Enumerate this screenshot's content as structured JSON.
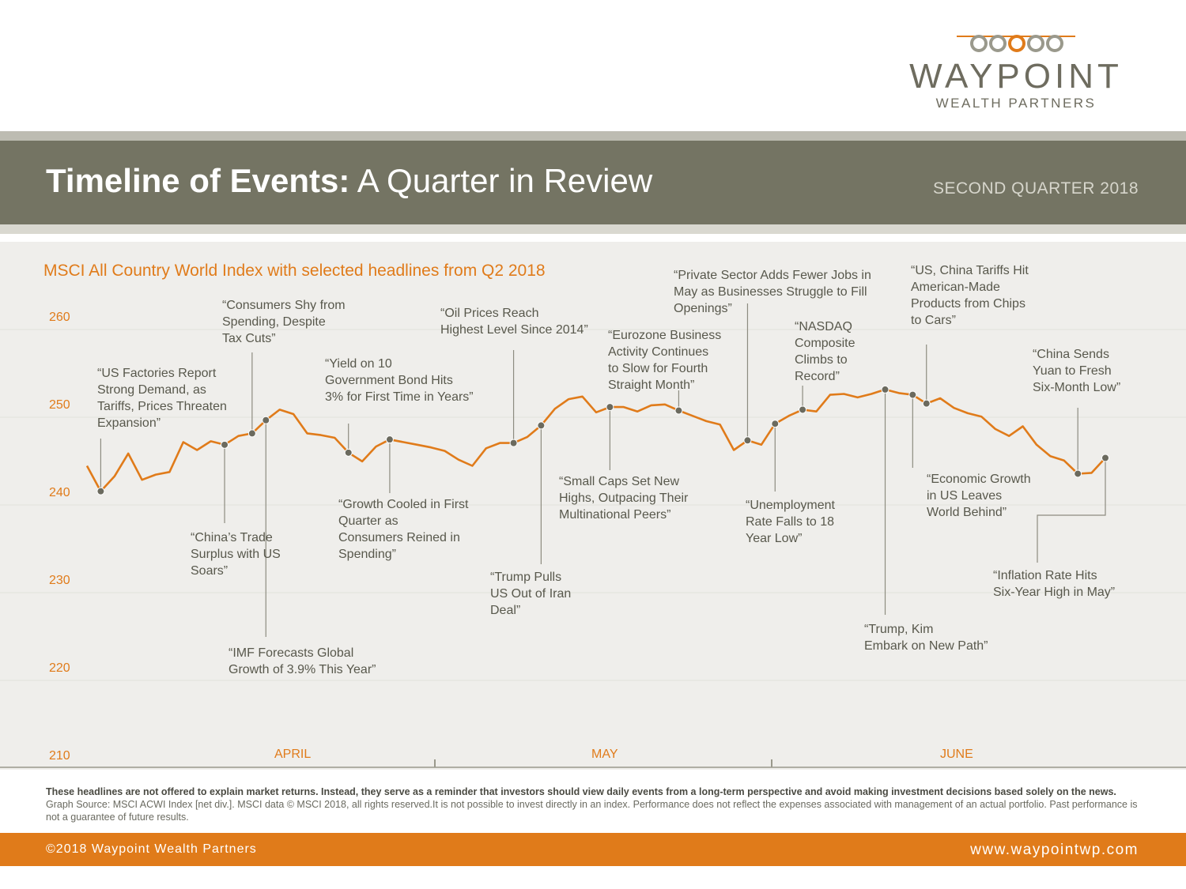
{
  "brand": {
    "name": "WAYPOINT",
    "tagline": "WEALTH PARTNERS",
    "colors": {
      "accent": "#e07b1a",
      "olive": "#747463",
      "text": "#58584c",
      "line": "#e07b1a",
      "panel": "#efeeeb"
    }
  },
  "header": {
    "title_bold": "Timeline of Events:",
    "title_light": "A Quarter in Review",
    "quarter": "SECOND QUARTER 2018"
  },
  "chart_data": {
    "type": "line",
    "title": "MSCI All Country World Index with selected headlines from Q2 2018",
    "ylim": [
      210,
      262
    ],
    "yticks": [
      "210",
      "220",
      "230",
      "240",
      "250",
      "260"
    ],
    "xlabels": [
      "APRIL",
      "MAY",
      "JUNE"
    ],
    "series": [
      {
        "name": "MSCI ACWI",
        "values": [
          243.2,
          240.3,
          242.0,
          244.6,
          241.6,
          242.2,
          242.5,
          245.9,
          245.0,
          246.0,
          245.6,
          246.6,
          246.9,
          248.4,
          249.6,
          249.1,
          246.9,
          246.7,
          246.4,
          244.7,
          243.7,
          245.4,
          246.2,
          245.9,
          245.6,
          245.3,
          244.9,
          243.9,
          243.2,
          245.2,
          245.8,
          245.8,
          246.5,
          247.8,
          249.7,
          250.8,
          251.1,
          249.3,
          249.9,
          249.9,
          249.4,
          250.1,
          250.2,
          249.5,
          248.9,
          248.3,
          247.9,
          245.0,
          246.1,
          245.6,
          248.0,
          248.9,
          249.6,
          249.4,
          251.3,
          251.4,
          251.0,
          251.4,
          251.9,
          251.5,
          251.3,
          250.3,
          250.9,
          249.8,
          249.2,
          248.8,
          247.4,
          246.6,
          247.7,
          245.6,
          244.3,
          243.8,
          242.3,
          242.4,
          244.1
        ]
      }
    ],
    "annotations": [
      {
        "text": "“US Factories Report\n Strong Demand, as\n Tariffs, Prices Threaten\n Expansion”",
        "index": 1
      },
      {
        "text": "“China’s Trade\n Surplus with US\n Soars”",
        "index": 10
      },
      {
        "text": "“Consumers Shy from\n Spending, Despite\n Tax Cuts”",
        "index": 12
      },
      {
        "text": "“IMF Forecasts Global\n Growth of 3.9% This Year”",
        "index": 13
      },
      {
        "text": "“Yield on 10\n Government Bond Hits\n 3% for First Time in Years”",
        "index": 19
      },
      {
        "text": "“Growth Cooled in First\n Quarter as\n Consumers Reined in\n Spending”",
        "index": 22
      },
      {
        "text": "“Oil Prices Reach\n Highest Level Since 2014”",
        "index": 31
      },
      {
        "text": "“Trump Pulls\n US Out of Iran\n Deal”",
        "index": 33
      },
      {
        "text": "“Small Caps Set New\n Highs, Outpacing Their\n Multinational Peers”",
        "index": 38
      },
      {
        "text": "“Eurozone Business\n Activity Continues\n to Slow for Fourth\n Straight Month”",
        "index": 43
      },
      {
        "text": "“Private Sector Adds Fewer Jobs in\n May as Businesses Struggle to Fill\n Openings”",
        "index": 48
      },
      {
        "text": "“Unemployment\n Rate Falls to 18\n Year Low”",
        "index": 50
      },
      {
        "text": "“NASDAQ\n Composite\n Climbs to\n Record”",
        "index": 52
      },
      {
        "text": "“Trump, Kim\n Embark on New Path”",
        "index": 58
      },
      {
        "text": "“Economic Growth\n in US Leaves\n World Behind”",
        "index": 60
      },
      {
        "text": "“US, China Tariffs Hit\n American-Made\n Products from Chips\n to Cars”",
        "index": 61
      },
      {
        "text": "“China Sends\n Yuan to Fresh\n Six-Month Low”",
        "index": 72
      },
      {
        "text": "“Inflation Rate Hits\n Six-Year High in May”",
        "index": 74
      }
    ]
  },
  "disclaimer": {
    "bold": "These headlines are not offered to explain market returns. Instead, they serve as a reminder that investors should view daily events from a long-term perspective and avoid making investment decisions based solely on the news.",
    "regular": "Graph Source: MSCI ACWI Index [net div.]. MSCI data © MSCI 2018, all rights reserved.It is not possible to invest directly in an index. Performance does not reflect the expenses associated with management of an actual portfolio. Past performance is not a guarantee of future results."
  },
  "footer": {
    "copyright": "©2018 Waypoint Wealth Partners",
    "url": "www.waypointwp.com"
  }
}
